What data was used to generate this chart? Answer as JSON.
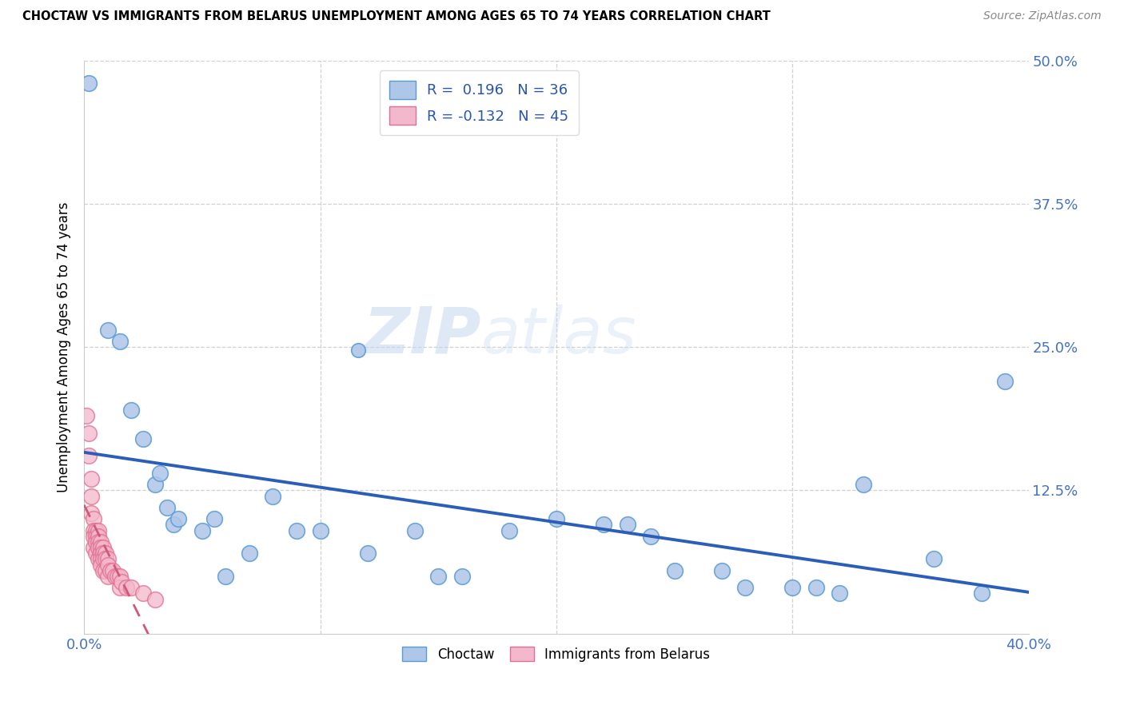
{
  "title": "CHOCTAW VS IMMIGRANTS FROM BELARUS UNEMPLOYMENT AMONG AGES 65 TO 74 YEARS CORRELATION CHART",
  "source": "Source: ZipAtlas.com",
  "ylabel": "Unemployment Among Ages 65 to 74 years",
  "xlim": [
    0.0,
    0.4
  ],
  "ylim": [
    0.0,
    0.5
  ],
  "xticks": [
    0.0,
    0.1,
    0.2,
    0.3,
    0.4
  ],
  "yticks": [
    0.0,
    0.125,
    0.25,
    0.375,
    0.5
  ],
  "xtick_labels": [
    "0.0%",
    "",
    "",
    "",
    "40.0%"
  ],
  "ytick_labels": [
    "",
    "12.5%",
    "25.0%",
    "37.5%",
    "50.0%"
  ],
  "choctaw_color": "#aec6e8",
  "choctaw_edge_color": "#5b9bd5",
  "belarus_color": "#f4b8cc",
  "belarus_edge_color": "#e07090",
  "trend_choctaw_color": "#2b5eb8",
  "trend_belarus_color": "#d05878",
  "legend_r_choctaw": "R =  0.196",
  "legend_n_choctaw": "N = 36",
  "legend_r_belarus": "R = -0.132",
  "legend_n_belarus": "N = 45",
  "watermark_zip": "ZIP",
  "watermark_atlas": "atlas",
  "choctaw_x": [
    0.002,
    0.01,
    0.015,
    0.02,
    0.025,
    0.03,
    0.032,
    0.035,
    0.038,
    0.04,
    0.05,
    0.055,
    0.06,
    0.07,
    0.08,
    0.09,
    0.1,
    0.12,
    0.14,
    0.15,
    0.16,
    0.18,
    0.2,
    0.22,
    0.23,
    0.24,
    0.25,
    0.27,
    0.28,
    0.3,
    0.31,
    0.32,
    0.33,
    0.36,
    0.38,
    0.39
  ],
  "choctaw_y": [
    0.48,
    0.265,
    0.255,
    0.195,
    0.17,
    0.13,
    0.14,
    0.11,
    0.095,
    0.1,
    0.09,
    0.1,
    0.05,
    0.07,
    0.12,
    0.09,
    0.09,
    0.07,
    0.09,
    0.05,
    0.05,
    0.09,
    0.1,
    0.095,
    0.095,
    0.085,
    0.055,
    0.055,
    0.04,
    0.04,
    0.04,
    0.035,
    0.13,
    0.065,
    0.035,
    0.22
  ],
  "belarus_x": [
    0.001,
    0.002,
    0.002,
    0.003,
    0.003,
    0.003,
    0.004,
    0.004,
    0.004,
    0.004,
    0.005,
    0.005,
    0.005,
    0.005,
    0.006,
    0.006,
    0.006,
    0.006,
    0.006,
    0.007,
    0.007,
    0.007,
    0.007,
    0.007,
    0.008,
    0.008,
    0.008,
    0.008,
    0.009,
    0.009,
    0.009,
    0.01,
    0.01,
    0.01,
    0.011,
    0.012,
    0.013,
    0.014,
    0.015,
    0.015,
    0.016,
    0.018,
    0.02,
    0.025,
    0.03
  ],
  "belarus_y": [
    0.19,
    0.175,
    0.155,
    0.135,
    0.12,
    0.105,
    0.1,
    0.09,
    0.085,
    0.075,
    0.09,
    0.085,
    0.08,
    0.07,
    0.09,
    0.085,
    0.08,
    0.075,
    0.065,
    0.08,
    0.075,
    0.07,
    0.065,
    0.06,
    0.075,
    0.07,
    0.065,
    0.055,
    0.07,
    0.065,
    0.055,
    0.065,
    0.06,
    0.05,
    0.055,
    0.055,
    0.05,
    0.05,
    0.05,
    0.04,
    0.045,
    0.04,
    0.04,
    0.035,
    0.03
  ]
}
